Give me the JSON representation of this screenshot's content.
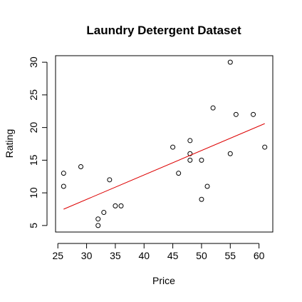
{
  "chart_data": {
    "type": "scatter",
    "title": "Laundry Detergent Dataset",
    "xlabel": "Price",
    "ylabel": "Rating",
    "xlim": [
      24.6,
      62.4
    ],
    "ylim": [
      4.0,
      31.0
    ],
    "xticks": [
      25,
      30,
      35,
      40,
      45,
      50,
      55,
      60
    ],
    "yticks": [
      5,
      10,
      15,
      20,
      25,
      30
    ],
    "grid": false,
    "point_color": "#000000",
    "fit_color": "#dd0000",
    "points": [
      {
        "x": 26,
        "y": 13
      },
      {
        "x": 26,
        "y": 11
      },
      {
        "x": 29,
        "y": 14
      },
      {
        "x": 32,
        "y": 6
      },
      {
        "x": 32,
        "y": 5
      },
      {
        "x": 33,
        "y": 7
      },
      {
        "x": 34,
        "y": 12
      },
      {
        "x": 35,
        "y": 8
      },
      {
        "x": 36,
        "y": 8
      },
      {
        "x": 45,
        "y": 17
      },
      {
        "x": 46,
        "y": 13
      },
      {
        "x": 48,
        "y": 18
      },
      {
        "x": 48,
        "y": 16
      },
      {
        "x": 48,
        "y": 15
      },
      {
        "x": 50,
        "y": 15
      },
      {
        "x": 50,
        "y": 9
      },
      {
        "x": 51,
        "y": 11
      },
      {
        "x": 52,
        "y": 23
      },
      {
        "x": 55,
        "y": 30
      },
      {
        "x": 55,
        "y": 16
      },
      {
        "x": 56,
        "y": 22
      },
      {
        "x": 59,
        "y": 22
      },
      {
        "x": 61,
        "y": 17
      }
    ],
    "fit_line": {
      "x": [
        26,
        61
      ],
      "y": [
        7.5,
        20.6
      ]
    }
  }
}
